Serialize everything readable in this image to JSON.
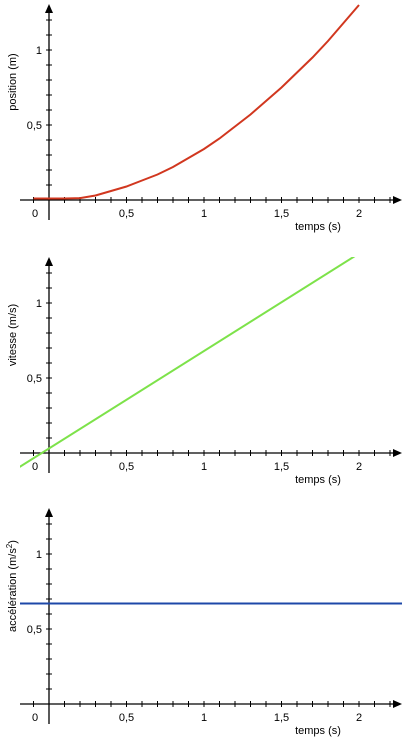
{
  "chart_data": [
    {
      "type": "line",
      "title": "",
      "xlabel": "temps (s)",
      "ylabel": "position (m)",
      "ylabel_sup": "",
      "xlim": [
        -0.1,
        2.3
      ],
      "ylim": [
        0,
        1.3
      ],
      "x_ticklabels": [
        {
          "v": 0,
          "t": "0"
        },
        {
          "v": 0.5,
          "t": "0,5"
        },
        {
          "v": 1,
          "t": "1"
        },
        {
          "v": 1.5,
          "t": "1,5"
        },
        {
          "v": 2,
          "t": "2"
        }
      ],
      "y_ticklabels": [
        {
          "v": 0.5,
          "t": "0,5"
        },
        {
          "v": 1,
          "t": "1"
        }
      ],
      "series": [
        {
          "color": "#d1371f",
          "x": [
            -0.1,
            0,
            0.1,
            0.2,
            0.3,
            0.4,
            0.5,
            0.6,
            0.7,
            0.8,
            0.9,
            1.0,
            1.1,
            1.2,
            1.3,
            1.4,
            1.5,
            1.6,
            1.7,
            1.8,
            1.9,
            2.0
          ],
          "y": [
            0.01,
            0.01,
            0.01,
            0.013,
            0.03,
            0.06,
            0.09,
            0.13,
            0.17,
            0.22,
            0.28,
            0.34,
            0.41,
            0.49,
            0.57,
            0.66,
            0.75,
            0.85,
            0.95,
            1.06,
            1.18,
            1.3
          ]
        }
      ]
    },
    {
      "type": "line",
      "title": "",
      "xlabel": "temps (s)",
      "ylabel": "vitesse (m/s)",
      "ylabel_sup": "",
      "xlim": [
        -0.1,
        2.3
      ],
      "ylim": [
        0,
        1.3
      ],
      "x_ticklabels": [
        {
          "v": 0,
          "t": "0"
        },
        {
          "v": 0.5,
          "t": "0,5"
        },
        {
          "v": 1,
          "t": "1"
        },
        {
          "v": 1.5,
          "t": "1,5"
        },
        {
          "v": 2,
          "t": "2"
        }
      ],
      "y_ticklabels": [
        {
          "v": 0.5,
          "t": "0,5"
        },
        {
          "v": 1,
          "t": "1"
        }
      ],
      "series": [
        {
          "color": "#7de24a",
          "x": [
            -0.2,
            2.0
          ],
          "y": [
            -0.1,
            1.33
          ]
        }
      ]
    },
    {
      "type": "line",
      "title": "",
      "xlabel": "temps (s)",
      "ylabel": "accélération (m/s",
      "ylabel_sup": "2",
      "ylabel_suffix": ")",
      "xlim": [
        -0.1,
        2.3
      ],
      "ylim": [
        0,
        1.3
      ],
      "x_ticklabels": [
        {
          "v": 0,
          "t": "0"
        },
        {
          "v": 0.5,
          "t": "0,5"
        },
        {
          "v": 1,
          "t": "1"
        },
        {
          "v": 1.5,
          "t": "1,5"
        },
        {
          "v": 2,
          "t": "2"
        }
      ],
      "y_ticklabels": [
        {
          "v": 0.5,
          "t": "0,5"
        },
        {
          "v": 1,
          "t": "1"
        }
      ],
      "series": [
        {
          "color": "#1e48a8",
          "x": [
            -0.2,
            2.3
          ],
          "y": [
            0.67,
            0.67
          ]
        }
      ]
    }
  ]
}
